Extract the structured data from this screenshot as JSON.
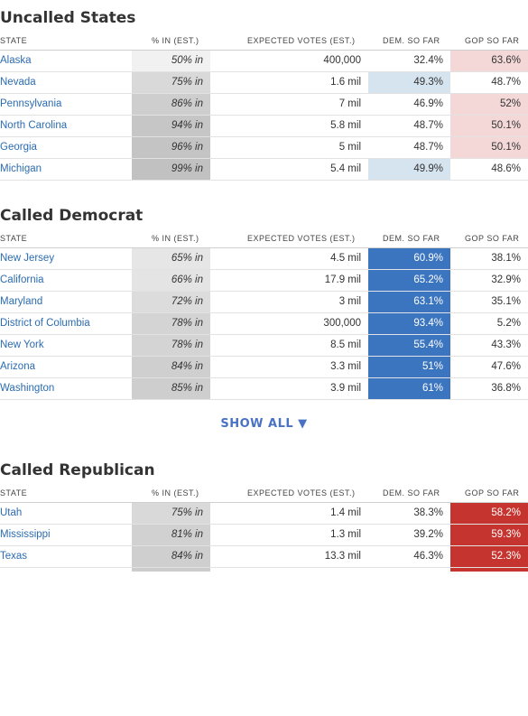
{
  "headers": {
    "state": "STATE",
    "pct_in": "% IN (EST.)",
    "expected": "EXPECTED VOTES (EST.)",
    "dem": "DEM. SO FAR",
    "gop": "GOP SO FAR"
  },
  "colors": {
    "dem_strong": "#3b75bf",
    "dem_light": "#d6e4f0",
    "gop_strong": "#c6342f",
    "gop_light": "#f4d8d8",
    "link": "#2b6cb0",
    "show_all": "#4a72c4"
  },
  "uncalled": {
    "title": "Uncalled States",
    "rows": [
      {
        "state": "Alaska",
        "pct": "50% in",
        "pct_shade": "#f1f1f1",
        "votes": "400,000",
        "dem": "32.4%",
        "gop": "63.6%",
        "dem_bg": "#ffffff",
        "gop_bg": "#f4d8d8",
        "dem_fg": "#333333",
        "gop_fg": "#333333"
      },
      {
        "state": "Nevada",
        "pct": "75% in",
        "pct_shade": "#d9d9d9",
        "votes": "1.6 mil",
        "dem": "49.3%",
        "gop": "48.7%",
        "dem_bg": "#d6e4f0",
        "gop_bg": "#ffffff",
        "dem_fg": "#333333",
        "gop_fg": "#333333"
      },
      {
        "state": "Pennsylvania",
        "pct": "86% in",
        "pct_shade": "#cecece",
        "votes": "7 mil",
        "dem": "46.9%",
        "gop": "52%",
        "dem_bg": "#ffffff",
        "gop_bg": "#f4d8d8",
        "dem_fg": "#333333",
        "gop_fg": "#333333"
      },
      {
        "state": "North Carolina",
        "pct": "94% in",
        "pct_shade": "#c6c6c6",
        "votes": "5.8 mil",
        "dem": "48.7%",
        "gop": "50.1%",
        "dem_bg": "#ffffff",
        "gop_bg": "#f4d8d8",
        "dem_fg": "#333333",
        "gop_fg": "#333333"
      },
      {
        "state": "Georgia",
        "pct": "96% in",
        "pct_shade": "#c4c4c4",
        "votes": "5 mil",
        "dem": "48.7%",
        "gop": "50.1%",
        "dem_bg": "#ffffff",
        "gop_bg": "#f4d8d8",
        "dem_fg": "#333333",
        "gop_fg": "#333333"
      },
      {
        "state": "Michigan",
        "pct": "99% in",
        "pct_shade": "#c1c1c1",
        "votes": "5.4 mil",
        "dem": "49.9%",
        "gop": "48.6%",
        "dem_bg": "#d6e4f0",
        "gop_bg": "#ffffff",
        "dem_fg": "#333333",
        "gop_fg": "#333333"
      }
    ]
  },
  "called_dem": {
    "title": "Called Democrat",
    "rows": [
      {
        "state": "New Jersey",
        "pct": "65% in",
        "pct_shade": "#e6e6e6",
        "votes": "4.5 mil",
        "dem": "60.9%",
        "gop": "38.1%",
        "dem_bg": "#3b75bf",
        "gop_bg": "#ffffff",
        "dem_fg": "#ffffff",
        "gop_fg": "#333333"
      },
      {
        "state": "California",
        "pct": "66% in",
        "pct_shade": "#e4e4e4",
        "votes": "17.9 mil",
        "dem": "65.2%",
        "gop": "32.9%",
        "dem_bg": "#3b75bf",
        "gop_bg": "#ffffff",
        "dem_fg": "#ffffff",
        "gop_fg": "#333333"
      },
      {
        "state": "Maryland",
        "pct": "72% in",
        "pct_shade": "#dcdcdc",
        "votes": "3 mil",
        "dem": "63.1%",
        "gop": "35.1%",
        "dem_bg": "#3b75bf",
        "gop_bg": "#ffffff",
        "dem_fg": "#ffffff",
        "gop_fg": "#333333"
      },
      {
        "state": "District of Columbia",
        "pct": "78% in",
        "pct_shade": "#d4d4d4",
        "votes": "300,000",
        "dem": "93.4%",
        "gop": "5.2%",
        "dem_bg": "#3b75bf",
        "gop_bg": "#ffffff",
        "dem_fg": "#ffffff",
        "gop_fg": "#333333"
      },
      {
        "state": "New York",
        "pct": "78% in",
        "pct_shade": "#d4d4d4",
        "votes": "8.5 mil",
        "dem": "55.4%",
        "gop": "43.3%",
        "dem_bg": "#3b75bf",
        "gop_bg": "#ffffff",
        "dem_fg": "#ffffff",
        "gop_fg": "#333333"
      },
      {
        "state": "Arizona",
        "pct": "84% in",
        "pct_shade": "#cfcfcf",
        "votes": "3.3 mil",
        "dem": "51%",
        "gop": "47.6%",
        "dem_bg": "#3b75bf",
        "gop_bg": "#ffffff",
        "dem_fg": "#ffffff",
        "gop_fg": "#333333"
      },
      {
        "state": "Washington",
        "pct": "85% in",
        "pct_shade": "#cecece",
        "votes": "3.9 mil",
        "dem": "61%",
        "gop": "36.8%",
        "dem_bg": "#3b75bf",
        "gop_bg": "#ffffff",
        "dem_fg": "#ffffff",
        "gop_fg": "#333333"
      }
    ],
    "show_all": "SHOW ALL ▼"
  },
  "called_gop": {
    "title": "Called Republican",
    "rows": [
      {
        "state": "Utah",
        "pct": "75% in",
        "pct_shade": "#d9d9d9",
        "votes": "1.4 mil",
        "dem": "38.3%",
        "gop": "58.2%",
        "dem_bg": "#ffffff",
        "gop_bg": "#c6342f",
        "dem_fg": "#333333",
        "gop_fg": "#ffffff"
      },
      {
        "state": "Mississippi",
        "pct": "81% in",
        "pct_shade": "#d1d1d1",
        "votes": "1.3 mil",
        "dem": "39.2%",
        "gop": "59.3%",
        "dem_bg": "#ffffff",
        "gop_bg": "#c6342f",
        "dem_fg": "#333333",
        "gop_fg": "#ffffff"
      },
      {
        "state": "Texas",
        "pct": "84% in",
        "pct_shade": "#cfcfcf",
        "votes": "13.3 mil",
        "dem": "46.3%",
        "gop": "52.3%",
        "dem_bg": "#ffffff",
        "gop_bg": "#c6342f",
        "dem_fg": "#333333",
        "gop_fg": "#ffffff"
      }
    ]
  }
}
